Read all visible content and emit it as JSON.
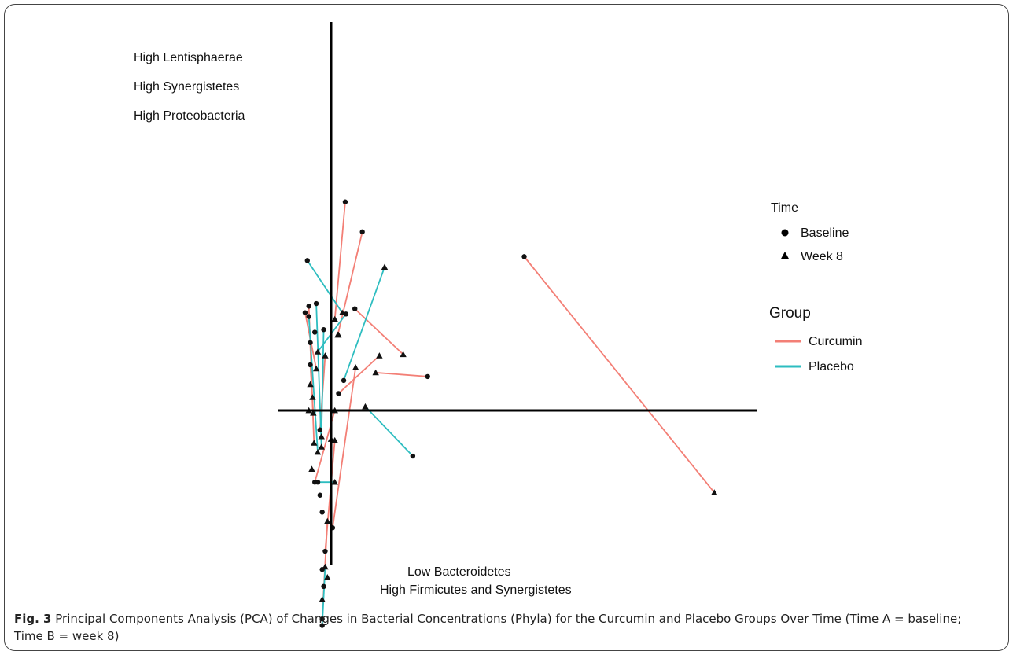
{
  "chart_data": {
    "type": "scatter",
    "description_axes": "PCA biplot; axes lines at origin, no tick labels",
    "xlim": [
      -0.65,
      5.5
    ],
    "ylim": [
      -1.75,
      2.95
    ],
    "quadrant_labels": {
      "upper_left": [
        "High Lentisphaerae",
        "High Synergistetes",
        "High Proteobacteria"
      ],
      "bottom": [
        "Low Bacteroidetes",
        "High Firmicutes and Synergistetes"
      ]
    },
    "legend": {
      "time_title": "Time",
      "time_items": [
        {
          "label": "Baseline",
          "shape": "circle"
        },
        {
          "label": "Week 8",
          "shape": "triangle"
        }
      ],
      "group_title": "Group",
      "group_items": [
        {
          "label": "Curcumin",
          "color": "#F37F76"
        },
        {
          "label": "Placebo",
          "color": "#2DBDC0"
        }
      ]
    },
    "series": [
      {
        "name": "Curcumin",
        "color": "#F37F76",
        "pairs": [
          {
            "baseline": [
              0.19,
              1.6
            ],
            "week8": [
              0.05,
              0.7
            ]
          },
          {
            "baseline": [
              0.42,
              1.37
            ],
            "week8": [
              0.09,
              0.58
            ]
          },
          {
            "baseline": [
              2.6,
              1.18
            ],
            "week8": [
              5.16,
              -0.63
            ]
          },
          {
            "baseline": [
              1.3,
              0.26
            ],
            "week8": [
              0.6,
              0.29
            ]
          },
          {
            "baseline": [
              0.32,
              0.78
            ],
            "week8": [
              0.97,
              0.43
            ]
          },
          {
            "baseline": [
              0.1,
              0.13
            ],
            "week8": [
              0.65,
              0.42
            ]
          },
          {
            "baseline": [
              0.02,
              -0.9
            ],
            "week8": [
              0.33,
              0.33
            ]
          },
          {
            "baseline": [
              -0.35,
              0.75
            ],
            "week8": [
              -0.2,
              0.32
            ]
          },
          {
            "baseline": [
              -0.3,
              0.8
            ],
            "week8": [
              -0.23,
              -0.25
            ]
          },
          {
            "baseline": [
              -0.22,
              -0.55
            ],
            "week8": [
              0.05,
              0.0
            ]
          },
          {
            "baseline": [
              -0.08,
              -1.08
            ],
            "week8": [
              0.05,
              -0.23
            ]
          },
          {
            "baseline": [
              -0.15,
              -0.15
            ],
            "week8": [
              -0.08,
              0.42
            ]
          },
          {
            "baseline": [
              -0.12,
              -1.6
            ],
            "week8": [
              -0.05,
              -0.85
            ]
          },
          {
            "baseline": [
              -0.28,
              0.35
            ],
            "week8": [
              -0.24,
              -0.02
            ]
          }
        ]
      },
      {
        "name": "Placebo",
        "color": "#2DBDC0",
        "pairs": [
          {
            "baseline": [
              -0.32,
              1.15
            ],
            "week8": [
              0.15,
              0.75
            ]
          },
          {
            "baseline": [
              0.17,
              0.23
            ],
            "week8": [
              0.72,
              1.1
            ]
          },
          {
            "baseline": [
              1.1,
              -0.35
            ],
            "week8": [
              0.46,
              0.03
            ]
          },
          {
            "baseline": [
              -0.2,
              0.82
            ],
            "week8": [
              -0.13,
              -0.28
            ]
          },
          {
            "baseline": [
              -0.3,
              0.72
            ],
            "week8": [
              -0.18,
              -0.32
            ]
          },
          {
            "baseline": [
              -0.18,
              -0.55
            ],
            "week8": [
              0.05,
              -0.55
            ]
          },
          {
            "baseline": [
              -0.1,
              0.62
            ],
            "week8": [
              -0.13,
              -0.2
            ]
          },
          {
            "baseline": [
              -0.12,
              -1.65
            ],
            "week8": [
              -0.08,
              -1.2
            ]
          },
          {
            "baseline": [
              0.2,
              0.74
            ],
            "week8": [
              -0.18,
              0.45
            ]
          }
        ]
      }
    ],
    "extra_points": [
      {
        "shape": "triangle",
        "xy": [
          -0.3,
          0.0
        ]
      },
      {
        "shape": "triangle",
        "xy": [
          -0.28,
          0.2
        ]
      },
      {
        "shape": "circle",
        "xy": [
          -0.28,
          0.52
        ]
      },
      {
        "shape": "triangle",
        "xy": [
          -0.25,
          0.1
        ]
      },
      {
        "shape": "circle",
        "xy": [
          -0.15,
          -0.15
        ]
      },
      {
        "shape": "triangle",
        "xy": [
          -0.26,
          -0.45
        ]
      },
      {
        "shape": "circle",
        "xy": [
          -0.15,
          -0.65
        ]
      },
      {
        "shape": "circle",
        "xy": [
          -0.12,
          -0.78
        ]
      },
      {
        "shape": "triangle",
        "xy": [
          0.0,
          -0.22
        ]
      },
      {
        "shape": "circle",
        "xy": [
          -0.12,
          -1.22
        ]
      },
      {
        "shape": "triangle",
        "xy": [
          -0.05,
          -1.28
        ]
      },
      {
        "shape": "circle",
        "xy": [
          -0.1,
          -1.35
        ]
      },
      {
        "shape": "triangle",
        "xy": [
          -0.12,
          -1.45
        ]
      },
      {
        "shape": "circle",
        "xy": [
          -0.22,
          0.6
        ]
      },
      {
        "shape": "triangle",
        "xy": [
          0.1,
          0.58
        ]
      }
    ]
  },
  "caption": {
    "label": "Fig. 3",
    "text": " Principal Components Analysis (PCA) of Changes in Bacterial Concentrations (Phyla) for the Curcumin and Placebo Groups Over Time (Time A = baseline; Time B = week 8)"
  }
}
